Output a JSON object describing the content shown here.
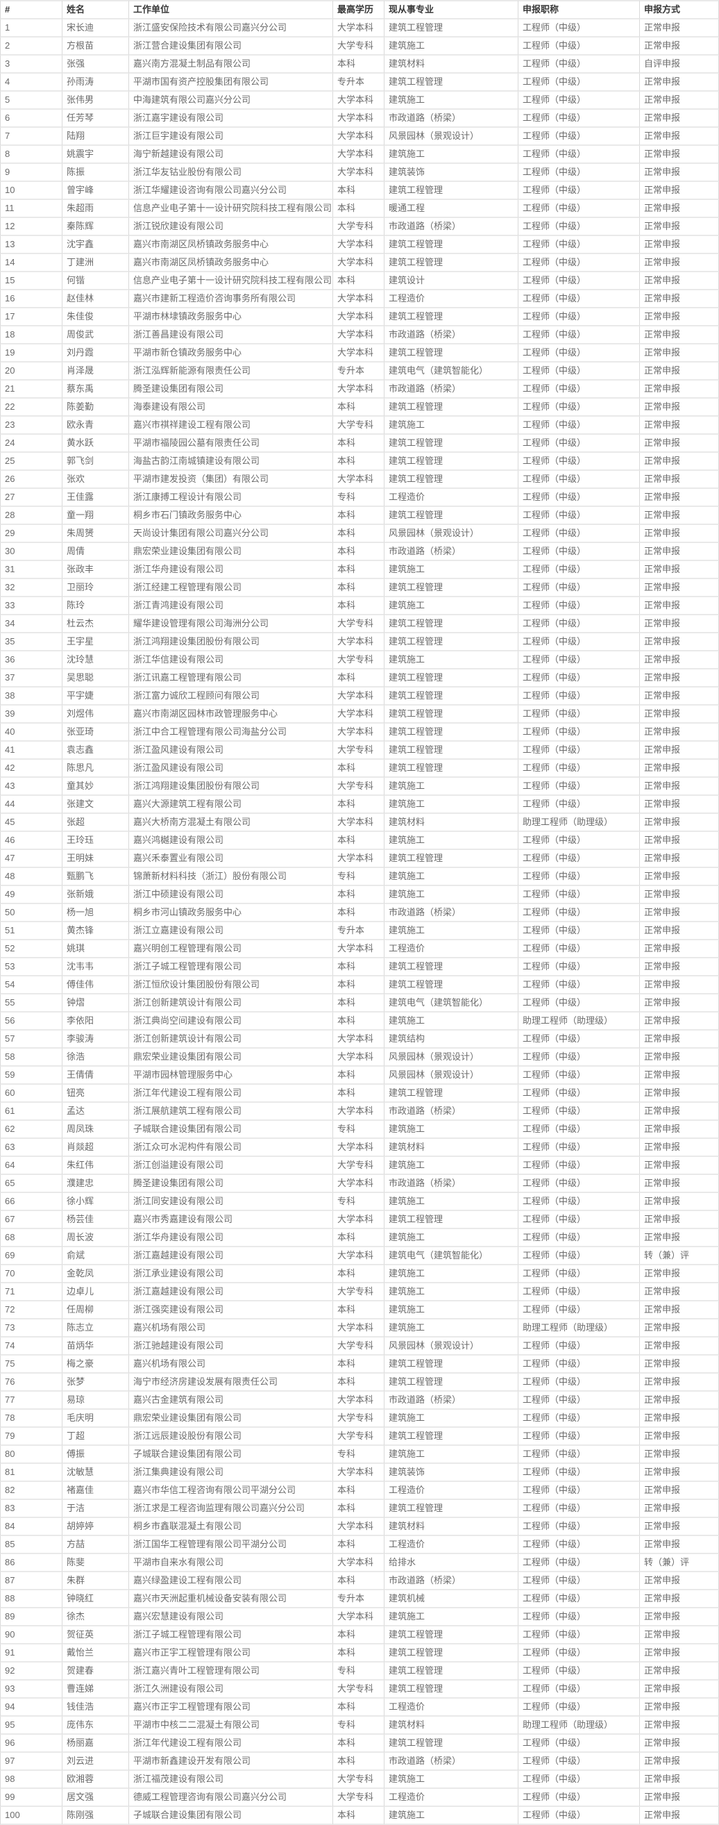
{
  "colors": {
    "row_divider": "#e9e9e9",
    "column_divider": "#d9d9d9",
    "header_text": "#383838",
    "body_text": "#6b6b6b",
    "background": "#ffffff"
  },
  "table": {
    "columns": [
      "#",
      "姓名",
      "工作单位",
      "最高学历",
      "现从事专业",
      "申报职称",
      "申报方式"
    ],
    "column_keys": [
      "row-number",
      "name",
      "employer",
      "education",
      "profession",
      "declared-title",
      "application-method"
    ],
    "rows": [
      [
        "1",
        "宋长迪",
        "浙江盛安保险技术有限公司嘉兴分公司",
        "大学本科",
        "建筑工程管理",
        "工程师（中级）",
        "正常申报"
      ],
      [
        "2",
        "方根苗",
        "浙江营合建设集团有限公司",
        "大学专科",
        "建筑施工",
        "工程师（中级）",
        "正常申报"
      ],
      [
        "3",
        "张强",
        "嘉兴南方混凝土制品有限公司",
        "本科",
        "建筑材料",
        "工程师（中级）",
        "自评申报"
      ],
      [
        "4",
        "孙雨涛",
        "平湖市国有资产控股集团有限公司",
        "专升本",
        "建筑工程管理",
        "工程师（中级）",
        "正常申报"
      ],
      [
        "5",
        "张伟男",
        "中海建筑有限公司嘉兴分公司",
        "大学本科",
        "建筑施工",
        "工程师（中级）",
        "正常申报"
      ],
      [
        "6",
        "任芳琴",
        "浙江嘉宇建设有限公司",
        "大学本科",
        "市政道路（桥梁）",
        "工程师（中级）",
        "正常申报"
      ],
      [
        "7",
        "陆翔",
        "浙江巨宇建设有限公司",
        "大学本科",
        "风景园林（景观设计）",
        "工程师（中级）",
        "正常申报"
      ],
      [
        "8",
        "姚震宇",
        "海宁新越建设有限公司",
        "大学本科",
        "建筑施工",
        "工程师（中级）",
        "正常申报"
      ],
      [
        "9",
        "陈振",
        "浙江华友钴业股份有限公司",
        "大学本科",
        "建筑装饰",
        "工程师（中级）",
        "正常申报"
      ],
      [
        "10",
        "曾宇峰",
        "浙江华耀建设咨询有限公司嘉兴分公司",
        "本科",
        "建筑工程管理",
        "工程师（中级）",
        "正常申报"
      ],
      [
        "11",
        "朱超雨",
        "信息产业电子第十一设计研究院科技工程有限公司",
        "本科",
        "暖通工程",
        "工程师（中级）",
        "正常申报"
      ],
      [
        "12",
        "秦陈辉",
        "浙江锐欣建设有限公司",
        "大学专科",
        "市政道路（桥梁）",
        "工程师（中级）",
        "正常申报"
      ],
      [
        "13",
        "沈宇鑫",
        "嘉兴市南湖区凤桥镇政务服务中心",
        "大学本科",
        "建筑工程管理",
        "工程师（中级）",
        "正常申报"
      ],
      [
        "14",
        "丁建洲",
        "嘉兴市南湖区凤桥镇政务服务中心",
        "大学本科",
        "建筑工程管理",
        "工程师（中级）",
        "正常申报"
      ],
      [
        "15",
        "何锴",
        "信息产业电子第十一设计研究院科技工程有限公司",
        "本科",
        "建筑设计",
        "工程师（中级）",
        "正常申报"
      ],
      [
        "16",
        "赵佳林",
        "嘉兴市建新工程造价咨询事务所有限公司",
        "大学本科",
        "工程造价",
        "工程师（中级）",
        "正常申报"
      ],
      [
        "17",
        "朱佳俊",
        "平湖市林埭镇政务服务中心",
        "大学本科",
        "建筑工程管理",
        "工程师（中级）",
        "正常申报"
      ],
      [
        "18",
        "周俊武",
        "浙江善昌建设有限公司",
        "大学本科",
        "市政道路（桥梁）",
        "工程师（中级）",
        "正常申报"
      ],
      [
        "19",
        "刘丹霞",
        "平湖市新仓镇政务服务中心",
        "大学本科",
        "建筑工程管理",
        "工程师（中级）",
        "正常申报"
      ],
      [
        "20",
        "肖泽晟",
        "浙江泓辉新能源有限责任公司",
        "专升本",
        "建筑电气（建筑智能化）",
        "工程师（中级）",
        "正常申报"
      ],
      [
        "21",
        "蔡东禹",
        "腾圣建设集团有限公司",
        "大学本科",
        "市政道路（桥梁）",
        "工程师（中级）",
        "正常申报"
      ],
      [
        "22",
        "陈姜勤",
        "海泰建设有限公司",
        "本科",
        "建筑工程管理",
        "工程师（中级）",
        "正常申报"
      ],
      [
        "23",
        "欧永青",
        "嘉兴市祺祥建设工程有限公司",
        "大学专科",
        "建筑施工",
        "工程师（中级）",
        "正常申报"
      ],
      [
        "24",
        "黄水跃",
        "平湖市福陵园公墓有限责任公司",
        "本科",
        "建筑工程管理",
        "工程师（中级）",
        "正常申报"
      ],
      [
        "25",
        "郭飞剑",
        "海盐古韵江南城镇建设有限公司",
        "本科",
        "建筑工程管理",
        "工程师（中级）",
        "正常申报"
      ],
      [
        "26",
        "张欢",
        "平湖市建发投资（集团）有限公司",
        "大学本科",
        "建筑工程管理",
        "工程师（中级）",
        "正常申报"
      ],
      [
        "27",
        "王佳露",
        "浙江康搏工程设计有限公司",
        "专科",
        "工程造价",
        "工程师（中级）",
        "正常申报"
      ],
      [
        "28",
        "童一翔",
        "桐乡市石门镇政务服务中心",
        "本科",
        "建筑工程管理",
        "工程师（中级）",
        "正常申报"
      ],
      [
        "29",
        "朱周赟",
        "天尚设计集团有限公司嘉兴分公司",
        "本科",
        "风景园林（景观设计）",
        "工程师（中级）",
        "正常申报"
      ],
      [
        "30",
        "周倩",
        "鼎宏荣业建设集团有限公司",
        "本科",
        "市政道路（桥梁）",
        "工程师（中级）",
        "正常申报"
      ],
      [
        "31",
        "张政丰",
        "浙江华舟建设有限公司",
        "本科",
        "建筑施工",
        "工程师（中级）",
        "正常申报"
      ],
      [
        "32",
        "卫丽玲",
        "浙江经建工程管理有限公司",
        "本科",
        "建筑工程管理",
        "工程师（中级）",
        "正常申报"
      ],
      [
        "33",
        "陈玲",
        "浙江青鸿建设有限公司",
        "本科",
        "建筑施工",
        "工程师（中级）",
        "正常申报"
      ],
      [
        "34",
        "杜云杰",
        "耀华建设管理有限公司海洲分公司",
        "大学专科",
        "建筑工程管理",
        "工程师（中级）",
        "正常申报"
      ],
      [
        "35",
        "王宇星",
        "浙江鸿翔建设集团股份有限公司",
        "大学本科",
        "建筑工程管理",
        "工程师（中级）",
        "正常申报"
      ],
      [
        "36",
        "沈玲慧",
        "浙江华信建设有限公司",
        "大学专科",
        "建筑施工",
        "工程师（中级）",
        "正常申报"
      ],
      [
        "37",
        "吴思聪",
        "浙江讯嘉工程管理有限公司",
        "本科",
        "建筑工程管理",
        "工程师（中级）",
        "正常申报"
      ],
      [
        "38",
        "平宇婕",
        "浙江富力诚欣工程顾问有限公司",
        "大学本科",
        "建筑工程管理",
        "工程师（中级）",
        "正常申报"
      ],
      [
        "39",
        "刘煜伟",
        "嘉兴市南湖区园林市政管理服务中心",
        "大学本科",
        "建筑工程管理",
        "工程师（中级）",
        "正常申报"
      ],
      [
        "40",
        "张亚琦",
        "浙江中合工程管理有限公司海盐分公司",
        "大学本科",
        "建筑工程管理",
        "工程师（中级）",
        "正常申报"
      ],
      [
        "41",
        "袁志鑫",
        "浙江盈风建设有限公司",
        "大学专科",
        "建筑工程管理",
        "工程师（中级）",
        "正常申报"
      ],
      [
        "42",
        "陈思凡",
        "浙江盈风建设有限公司",
        "本科",
        "建筑工程管理",
        "工程师（中级）",
        "正常申报"
      ],
      [
        "43",
        "童其妙",
        "浙江鸿翔建设集团股份有限公司",
        "大学专科",
        "建筑施工",
        "工程师（中级）",
        "正常申报"
      ],
      [
        "44",
        "张建文",
        "嘉兴大源建筑工程有限公司",
        "本科",
        "建筑施工",
        "工程师（中级）",
        "正常申报"
      ],
      [
        "45",
        "张超",
        "嘉兴大桥南方混凝土有限公司",
        "大学本科",
        "建筑材料",
        "助理工程师（助理级）",
        "正常申报"
      ],
      [
        "46",
        "王玲珏",
        "嘉兴鸿樾建设有限公司",
        "本科",
        "建筑施工",
        "工程师（中级）",
        "正常申报"
      ],
      [
        "47",
        "王明妹",
        "嘉兴禾泰置业有限公司",
        "大学本科",
        "建筑工程管理",
        "工程师（中级）",
        "正常申报"
      ],
      [
        "48",
        "甄鹏飞",
        "锦萧新材料科技（浙江）股份有限公司",
        "专科",
        "建筑施工",
        "工程师（中级）",
        "正常申报"
      ],
      [
        "49",
        "张新娥",
        "浙江中硕建设有限公司",
        "本科",
        "建筑施工",
        "工程师（中级）",
        "正常申报"
      ],
      [
        "50",
        "杨一旭",
        "桐乡市河山镇政务服务中心",
        "本科",
        "市政道路（桥梁）",
        "工程师（中级）",
        "正常申报"
      ],
      [
        "51",
        "黄杰锋",
        "浙江立嘉建设有限公司",
        "专升本",
        "建筑施工",
        "工程师（中级）",
        "正常申报"
      ],
      [
        "52",
        "姚琪",
        "嘉兴明创工程管理有限公司",
        "大学本科",
        "工程造价",
        "工程师（中级）",
        "正常申报"
      ],
      [
        "53",
        "沈韦韦",
        "浙江子城工程管理有限公司",
        "本科",
        "建筑工程管理",
        "工程师（中级）",
        "正常申报"
      ],
      [
        "54",
        "傅佳伟",
        "浙江恒欣设计集团股份有限公司",
        "本科",
        "建筑工程管理",
        "工程师（中级）",
        "正常申报"
      ],
      [
        "55",
        "钟熠",
        "浙江创新建筑设计有限公司",
        "本科",
        "建筑电气（建筑智能化）",
        "工程师（中级）",
        "正常申报"
      ],
      [
        "56",
        "李依阳",
        "浙江典尚空间建设有限公司",
        "本科",
        "建筑施工",
        "助理工程师（助理级）",
        "正常申报"
      ],
      [
        "57",
        "李骏涛",
        "浙江创新建筑设计有限公司",
        "大学本科",
        "建筑结构",
        "工程师（中级）",
        "正常申报"
      ],
      [
        "58",
        "徐浩",
        "鼎宏荣业建设集团有限公司",
        "大学本科",
        "风景园林（景观设计）",
        "工程师（中级）",
        "正常申报"
      ],
      [
        "59",
        "王倩倩",
        "平湖市园林管理服务中心",
        "本科",
        "风景园林（景观设计）",
        "工程师（中级）",
        "正常申报"
      ],
      [
        "60",
        "钮亮",
        "浙江年代建设工程有限公司",
        "本科",
        "建筑工程管理",
        "工程师（中级）",
        "正常申报"
      ],
      [
        "61",
        "孟达",
        "浙江展航建筑工程有限公司",
        "大学本科",
        "市政道路（桥梁）",
        "工程师（中级）",
        "正常申报"
      ],
      [
        "62",
        "周凤珠",
        "子城联合建设集团有限公司",
        "专科",
        "建筑施工",
        "工程师（中级）",
        "正常申报"
      ],
      [
        "63",
        "肖燚超",
        "浙江众可水泥构件有限公司",
        "大学本科",
        "建筑材料",
        "工程师（中级）",
        "正常申报"
      ],
      [
        "64",
        "朱红伟",
        "浙江创溢建设有限公司",
        "大学专科",
        "建筑施工",
        "工程师（中级）",
        "正常申报"
      ],
      [
        "65",
        "濮建忠",
        "腾圣建设集团有限公司",
        "大学本科",
        "市政道路（桥梁）",
        "工程师（中级）",
        "正常申报"
      ],
      [
        "66",
        "徐小辉",
        "浙江同安建设有限公司",
        "专科",
        "建筑施工",
        "工程师（中级）",
        "正常申报"
      ],
      [
        "67",
        "杨芸佳",
        "嘉兴市秀嘉建设有限公司",
        "大学本科",
        "建筑工程管理",
        "工程师（中级）",
        "正常申报"
      ],
      [
        "68",
        "周长波",
        "浙江华舟建设有限公司",
        "本科",
        "建筑施工",
        "工程师（中级）",
        "正常申报"
      ],
      [
        "69",
        "俞斌",
        "浙江嘉越建设有限公司",
        "大学本科",
        "建筑电气（建筑智能化）",
        "工程师（中级）",
        "转（兼）评"
      ],
      [
        "70",
        "金乾凤",
        "浙江承业建设有限公司",
        "本科",
        "建筑施工",
        "工程师（中级）",
        "正常申报"
      ],
      [
        "71",
        "边卓儿",
        "浙江嘉越建设有限公司",
        "大学专科",
        "建筑施工",
        "工程师（中级）",
        "正常申报"
      ],
      [
        "72",
        "任周柳",
        "浙江强奕建设有限公司",
        "本科",
        "建筑施工",
        "工程师（中级）",
        "正常申报"
      ],
      [
        "73",
        "陈志立",
        "嘉兴机场有限公司",
        "大学本科",
        "建筑施工",
        "助理工程师（助理级）",
        "正常申报"
      ],
      [
        "74",
        "苗炳华",
        "浙江驰越建设有限公司",
        "大学专科",
        "风景园林（景观设计）",
        "工程师（中级）",
        "正常申报"
      ],
      [
        "75",
        "梅之豪",
        "嘉兴机场有限公司",
        "本科",
        "建筑工程管理",
        "工程师（中级）",
        "正常申报"
      ],
      [
        "76",
        "张梦",
        "海宁市经济房建设发展有限责任公司",
        "本科",
        "建筑工程管理",
        "工程师（中级）",
        "正常申报"
      ],
      [
        "77",
        "易琼",
        "嘉兴古金建筑有限公司",
        "大学本科",
        "市政道路（桥梁）",
        "工程师（中级）",
        "正常申报"
      ],
      [
        "78",
        "毛庆明",
        "鼎宏荣业建设集团有限公司",
        "大学专科",
        "建筑施工",
        "工程师（中级）",
        "正常申报"
      ],
      [
        "79",
        "丁超",
        "浙江远辰建设股份有限公司",
        "大学专科",
        "建筑工程管理",
        "工程师（中级）",
        "正常申报"
      ],
      [
        "80",
        "傅振",
        "子城联合建设集团有限公司",
        "专科",
        "建筑施工",
        "工程师（中级）",
        "正常申报"
      ],
      [
        "81",
        "沈敏慧",
        "浙江集典建设有限公司",
        "大学本科",
        "建筑装饰",
        "工程师（中级）",
        "正常申报"
      ],
      [
        "82",
        "褚嘉佳",
        "嘉兴市华信工程咨询有限公司平湖分公司",
        "本科",
        "工程造价",
        "工程师（中级）",
        "正常申报"
      ],
      [
        "83",
        "于洁",
        "浙江求是工程咨询监理有限公司嘉兴分公司",
        "本科",
        "建筑工程管理",
        "工程师（中级）",
        "正常申报"
      ],
      [
        "84",
        "胡婷婷",
        "桐乡市鑫联混凝土有限公司",
        "大学本科",
        "建筑材料",
        "工程师（中级）",
        "正常申报"
      ],
      [
        "85",
        "方喆",
        "浙江国华工程管理有限公司平湖分公司",
        "本科",
        "工程造价",
        "工程师（中级）",
        "正常申报"
      ],
      [
        "86",
        "陈斐",
        "平湖市自来水有限公司",
        "大学本科",
        "给排水",
        "工程师（中级）",
        "转（兼）评"
      ],
      [
        "87",
        "朱群",
        "嘉兴绿盈建设工程有限公司",
        "本科",
        "市政道路（桥梁）",
        "工程师（中级）",
        "正常申报"
      ],
      [
        "88",
        "钟晓红",
        "嘉兴市天洲起重机械设备安装有限公司",
        "专升本",
        "建筑机械",
        "工程师（中级）",
        "正常申报"
      ],
      [
        "89",
        "徐杰",
        "嘉兴宏慧建设有限公司",
        "大学本科",
        "建筑施工",
        "工程师（中级）",
        "正常申报"
      ],
      [
        "90",
        "贺征英",
        "浙江子城工程管理有限公司",
        "本科",
        "建筑工程管理",
        "工程师（中级）",
        "正常申报"
      ],
      [
        "91",
        "戴怡兰",
        "嘉兴市正宇工程管理有限公司",
        "本科",
        "建筑工程管理",
        "工程师（中级）",
        "正常申报"
      ],
      [
        "92",
        "贺建春",
        "浙江嘉兴青叶工程管理有限公司",
        "专科",
        "建筑工程管理",
        "工程师（中级）",
        "正常申报"
      ],
      [
        "93",
        "曹连娣",
        "浙江久洲建设有限公司",
        "大学专科",
        "建筑工程管理",
        "工程师（中级）",
        "正常申报"
      ],
      [
        "94",
        "钱佳浩",
        "嘉兴市正宇工程管理有限公司",
        "本科",
        "工程造价",
        "工程师（中级）",
        "正常申报"
      ],
      [
        "95",
        "庞伟东",
        "平湖市中核二二混凝土有限公司",
        "专科",
        "建筑材料",
        "助理工程师（助理级）",
        "正常申报"
      ],
      [
        "96",
        "杨丽嘉",
        "浙江年代建设工程有限公司",
        "本科",
        "建筑工程管理",
        "工程师（中级）",
        "正常申报"
      ],
      [
        "97",
        "刘云进",
        "平湖市新鑫建设开发有限公司",
        "本科",
        "市政道路（桥梁）",
        "工程师（中级）",
        "正常申报"
      ],
      [
        "98",
        "欧湘蓉",
        "浙江福茂建设有限公司",
        "大学专科",
        "建筑施工",
        "工程师（中级）",
        "正常申报"
      ],
      [
        "99",
        "居文强",
        "德威工程管理咨询有限公司嘉兴分公司",
        "大学专科",
        "工程造价",
        "工程师（中级）",
        "正常申报"
      ],
      [
        "100",
        "陈刚强",
        "子城联合建设集团有限公司",
        "本科",
        "建筑施工",
        "工程师（中级）",
        "正常申报"
      ]
    ]
  }
}
